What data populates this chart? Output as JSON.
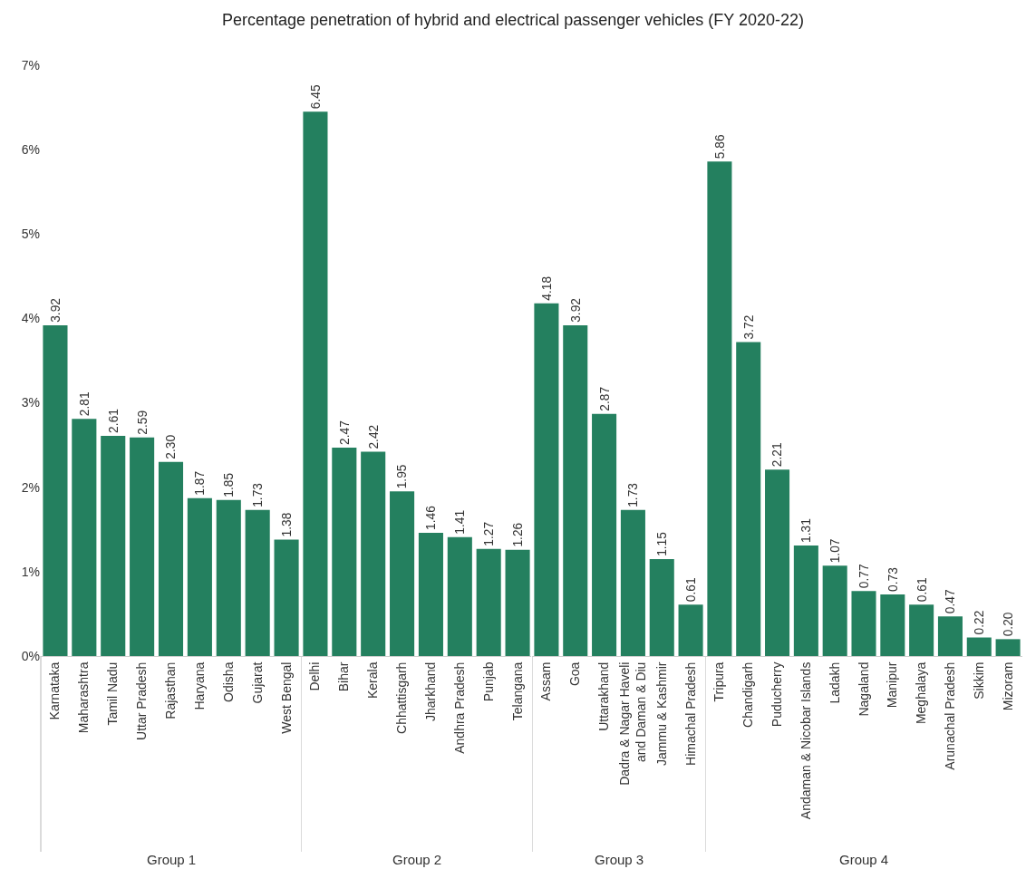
{
  "chart_data": [
    {
      "type": "bar",
      "title": "Percentage penetration of hybrid and electrical passenger vehicles (FY 2020-22)",
      "xlabel": "Group 1",
      "categories": [
        "Karnataka",
        "Maharashtra",
        "Tamil Nadu",
        "Uttar Pradesh",
        "Rajasthan",
        "Haryana",
        "Odisha",
        "Gujarat",
        "West Bengal"
      ],
      "values": [
        3.92,
        2.81,
        2.61,
        2.59,
        2.3,
        1.87,
        1.85,
        1.73,
        1.38
      ],
      "value_labels": [
        "3.92",
        "2.81",
        "2.61",
        "2.59",
        "2.30",
        "1.87",
        "1.85",
        "1.73",
        "1.38"
      ],
      "color": "#24805f",
      "ylim": [
        0,
        7
      ],
      "yticks": [
        {
          "value": 0,
          "label": "0%"
        },
        {
          "value": 1,
          "label": "1%"
        },
        {
          "value": 2,
          "label": "2%"
        },
        {
          "value": 3,
          "label": "3%"
        },
        {
          "value": 4,
          "label": "4%"
        },
        {
          "value": 5,
          "label": "5%"
        },
        {
          "value": 6,
          "label": "6%"
        },
        {
          "value": 7,
          "label": "7%"
        }
      ]
    },
    {
      "type": "bar",
      "xlabel": "Group 2",
      "tick_labels": "x",
      "categories": [
        "Delhi",
        "Bihar",
        "Kerala",
        "Chhattisgarh",
        "Jharkhand",
        "Andhra Pradesh",
        "Punjab",
        "Telangana"
      ],
      "values": [
        6.45,
        2.47,
        2.42,
        1.95,
        1.46,
        1.41,
        1.27,
        1.26
      ],
      "value_labels": [
        "6.45",
        "2.47",
        "2.42",
        "1.95",
        "1.46",
        "1.41",
        "1.27",
        "1.26"
      ],
      "color": "#24805f",
      "ylim": [
        0,
        7
      ]
    },
    {
      "type": "bar",
      "xlabel": "Group 3",
      "tick_labels": "x",
      "categories": [
        "Assam",
        "Goa",
        "Uttarakhand",
        "Dadra & Nagar Haveli\nand Daman & Diu",
        "Jammu & Kashmir",
        "Himachal Pradesh"
      ],
      "values": [
        4.18,
        3.92,
        2.87,
        1.73,
        1.15,
        0.61
      ],
      "value_labels": [
        "4.18",
        "3.92",
        "2.87",
        "1.73",
        "1.15",
        "0.61"
      ],
      "color": "#24805f",
      "ylim": [
        0,
        7
      ]
    },
    {
      "type": "bar",
      "xlabel": "Group 4",
      "tick_labels": "x",
      "categories": [
        "Tripura",
        "Chandigarh",
        "Puducherry",
        "Andaman & Nicobar Islands",
        "Ladakh",
        "Nagaland",
        "Manipur",
        "Meghalaya",
        "Arunachal Pradesh",
        "Sikkim",
        "Mizoram"
      ],
      "values": [
        5.86,
        3.72,
        2.21,
        1.31,
        1.07,
        0.77,
        0.73,
        0.61,
        0.47,
        0.22,
        0.2
      ],
      "value_labels": [
        "5.86",
        "3.72",
        "2.21",
        "1.31",
        "1.07",
        "0.77",
        "0.73",
        "0.61",
        "0.47",
        "0.22",
        "0.20"
      ],
      "color": "#24805f",
      "ylim": [
        0,
        7
      ]
    }
  ]
}
